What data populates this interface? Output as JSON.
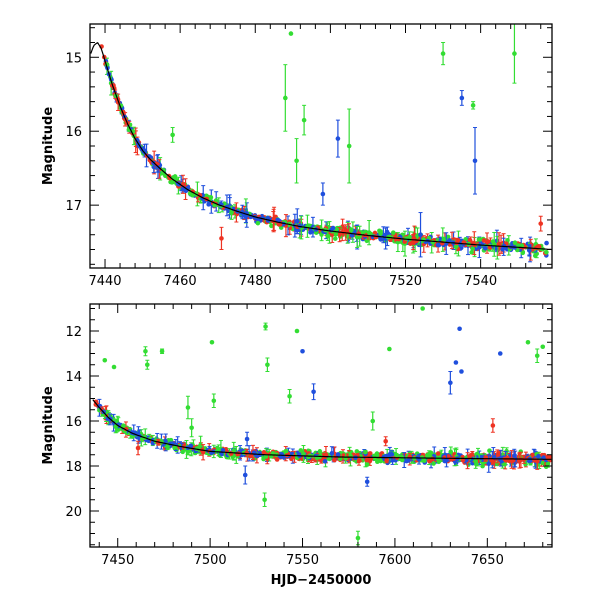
{
  "chart_data": [
    {
      "type": "scatter",
      "title": "",
      "xlabel": "",
      "ylabel": "Magnitude",
      "xlim": [
        7436,
        7559
      ],
      "ylim": [
        17.85,
        14.55
      ],
      "y_inverted": true,
      "x_ticks": [
        7440,
        7460,
        7480,
        7500,
        7520,
        7540
      ],
      "x_tick_labels": [
        "7440",
        "7460",
        "7480",
        "7500",
        "7520",
        "7540"
      ],
      "y_ticks": [
        15,
        16,
        17
      ],
      "y_tick_labels": [
        "15",
        "16",
        "17"
      ],
      "colors": {
        "model": "#000000",
        "green": "#33dd33",
        "blue": "#1f4fdd",
        "red": "#ee3322"
      },
      "model_curve": [
        [
          7436.2,
          14.95
        ],
        [
          7437.0,
          14.84
        ],
        [
          7438.0,
          14.8
        ],
        [
          7439.0,
          14.88
        ],
        [
          7440.0,
          15.05
        ],
        [
          7442.0,
          15.38
        ],
        [
          7444.0,
          15.66
        ],
        [
          7446.0,
          15.9
        ],
        [
          7448.0,
          16.1
        ],
        [
          7450.0,
          16.26
        ],
        [
          7452.0,
          16.38
        ],
        [
          7455.0,
          16.52
        ],
        [
          7458.0,
          16.65
        ],
        [
          7462.0,
          16.79
        ],
        [
          7466.0,
          16.9
        ],
        [
          7470.0,
          16.99
        ],
        [
          7475.0,
          17.08
        ],
        [
          7480.0,
          17.16
        ],
        [
          7486.0,
          17.23
        ],
        [
          7492.0,
          17.29
        ],
        [
          7500.0,
          17.35
        ],
        [
          7510.0,
          17.41
        ],
        [
          7520.0,
          17.46
        ],
        [
          7530.0,
          17.5
        ],
        [
          7540.0,
          17.54
        ],
        [
          7550.0,
          17.57
        ],
        [
          7559.0,
          17.6
        ]
      ],
      "outliers": [
        {
          "series": "green",
          "x": 7488.0,
          "y": 15.55,
          "err": 0.45
        },
        {
          "series": "green",
          "x": 7489.5,
          "y": 14.68,
          "err": 0.0
        },
        {
          "series": "green",
          "x": 7491.0,
          "y": 16.4,
          "err": 0.3
        },
        {
          "series": "green",
          "x": 7493.0,
          "y": 15.85,
          "err": 0.2
        },
        {
          "series": "green",
          "x": 7505.0,
          "y": 16.2,
          "err": 0.5
        },
        {
          "series": "green",
          "x": 7530.0,
          "y": 14.95,
          "err": 0.15
        },
        {
          "series": "green",
          "x": 7538.0,
          "y": 15.65,
          "err": 0.05
        },
        {
          "series": "green",
          "x": 7549.0,
          "y": 14.95,
          "err": 0.4
        },
        {
          "series": "green",
          "x": 7458.0,
          "y": 16.05,
          "err": 0.1
        },
        {
          "series": "blue",
          "x": 7502.0,
          "y": 16.1,
          "err": 0.25
        },
        {
          "series": "blue",
          "x": 7535.0,
          "y": 15.55,
          "err": 0.1
        },
        {
          "series": "blue",
          "x": 7538.5,
          "y": 16.4,
          "err": 0.45
        },
        {
          "series": "blue",
          "x": 7498.0,
          "y": 16.85,
          "err": 0.15
        },
        {
          "series": "blue",
          "x": 7524.0,
          "y": 17.4,
          "err": 0.3
        },
        {
          "series": "red",
          "x": 7471.0,
          "y": 17.45,
          "err": 0.15
        },
        {
          "series": "red",
          "x": 7556.0,
          "y": 17.25,
          "err": 0.1
        }
      ]
    },
    {
      "type": "scatter",
      "title": "",
      "xlabel": "HJD−2450000",
      "ylabel": "Magnitude",
      "xlim": [
        7435,
        7685
      ],
      "ylim": [
        21.6,
        10.8
      ],
      "y_inverted": true,
      "x_ticks": [
        7450,
        7500,
        7550,
        7600,
        7650
      ],
      "x_tick_labels": [
        "7450",
        "7500",
        "7550",
        "7600",
        "7650"
      ],
      "y_ticks": [
        12,
        14,
        16,
        18,
        20
      ],
      "y_tick_labels": [
        "12",
        "14",
        "16",
        "18",
        "20"
      ],
      "colors": {
        "model": "#000000",
        "green": "#33dd33",
        "blue": "#1f4fdd",
        "red": "#ee3322"
      },
      "model_curve": [
        [
          7436.5,
          15.05
        ],
        [
          7440.0,
          15.4
        ],
        [
          7445.0,
          15.85
        ],
        [
          7450.0,
          16.2
        ],
        [
          7458.0,
          16.55
        ],
        [
          7470.0,
          16.9
        ],
        [
          7485.0,
          17.15
        ],
        [
          7500.0,
          17.35
        ],
        [
          7530.0,
          17.5
        ],
        [
          7570.0,
          17.6
        ],
        [
          7620.0,
          17.65
        ],
        [
          7680.0,
          17.7
        ]
      ],
      "outliers": [
        {
          "series": "green",
          "x": 7443.0,
          "y": 13.3,
          "err": 0.0
        },
        {
          "series": "green",
          "x": 7448.0,
          "y": 13.6,
          "err": 0.0
        },
        {
          "series": "green",
          "x": 7465.0,
          "y": 12.9,
          "err": 0.2
        },
        {
          "series": "green",
          "x": 7466.0,
          "y": 13.5,
          "err": 0.2
        },
        {
          "series": "green",
          "x": 7474.0,
          "y": 12.9,
          "err": 0.1
        },
        {
          "series": "green",
          "x": 7488.0,
          "y": 15.4,
          "err": 0.5
        },
        {
          "series": "green",
          "x": 7490.0,
          "y": 16.3,
          "err": 0.4
        },
        {
          "series": "green",
          "x": 7501.0,
          "y": 12.5,
          "err": 0.0
        },
        {
          "series": "green",
          "x": 7502.0,
          "y": 15.1,
          "err": 0.3
        },
        {
          "series": "green",
          "x": 7530.0,
          "y": 11.8,
          "err": 0.15
        },
        {
          "series": "green",
          "x": 7531.0,
          "y": 13.5,
          "err": 0.3
        },
        {
          "series": "green",
          "x": 7529.5,
          "y": 19.5,
          "err": 0.3
        },
        {
          "series": "green",
          "x": 7543.0,
          "y": 14.9,
          "err": 0.3
        },
        {
          "series": "green",
          "x": 7547.0,
          "y": 12.0,
          "err": 0.0
        },
        {
          "series": "green",
          "x": 7580.0,
          "y": 21.2,
          "err": 0.3
        },
        {
          "series": "green",
          "x": 7588.0,
          "y": 16.0,
          "err": 0.4
        },
        {
          "series": "green",
          "x": 7597.0,
          "y": 12.8,
          "err": 0.0
        },
        {
          "series": "green",
          "x": 7615.0,
          "y": 11.0,
          "err": 0.0
        },
        {
          "series": "green",
          "x": 7672.0,
          "y": 12.5,
          "err": 0.0
        },
        {
          "series": "green",
          "x": 7677.0,
          "y": 13.1,
          "err": 0.3
        },
        {
          "series": "green",
          "x": 7680.0,
          "y": 12.7,
          "err": 0.0
        },
        {
          "series": "blue",
          "x": 7519.0,
          "y": 18.4,
          "err": 0.4
        },
        {
          "series": "blue",
          "x": 7550.0,
          "y": 12.9,
          "err": 0.0
        },
        {
          "series": "blue",
          "x": 7556.0,
          "y": 14.7,
          "err": 0.35
        },
        {
          "series": "blue",
          "x": 7585.0,
          "y": 18.7,
          "err": 0.2
        },
        {
          "series": "blue",
          "x": 7630.0,
          "y": 14.3,
          "err": 0.5
        },
        {
          "series": "blue",
          "x": 7633.0,
          "y": 13.4,
          "err": 0.0
        },
        {
          "series": "blue",
          "x": 7635.0,
          "y": 11.9,
          "err": 0.0
        },
        {
          "series": "blue",
          "x": 7636.0,
          "y": 13.8,
          "err": 0.0
        },
        {
          "series": "blue",
          "x": 7657.0,
          "y": 13.0,
          "err": 0.0
        },
        {
          "series": "blue",
          "x": 7520.0,
          "y": 16.8,
          "err": 0.3
        },
        {
          "series": "red",
          "x": 7653.0,
          "y": 16.2,
          "err": 0.3
        },
        {
          "series": "red",
          "x": 7461.0,
          "y": 17.2,
          "err": 0.3
        },
        {
          "series": "red",
          "x": 7595.0,
          "y": 16.9,
          "err": 0.2
        }
      ]
    }
  ]
}
